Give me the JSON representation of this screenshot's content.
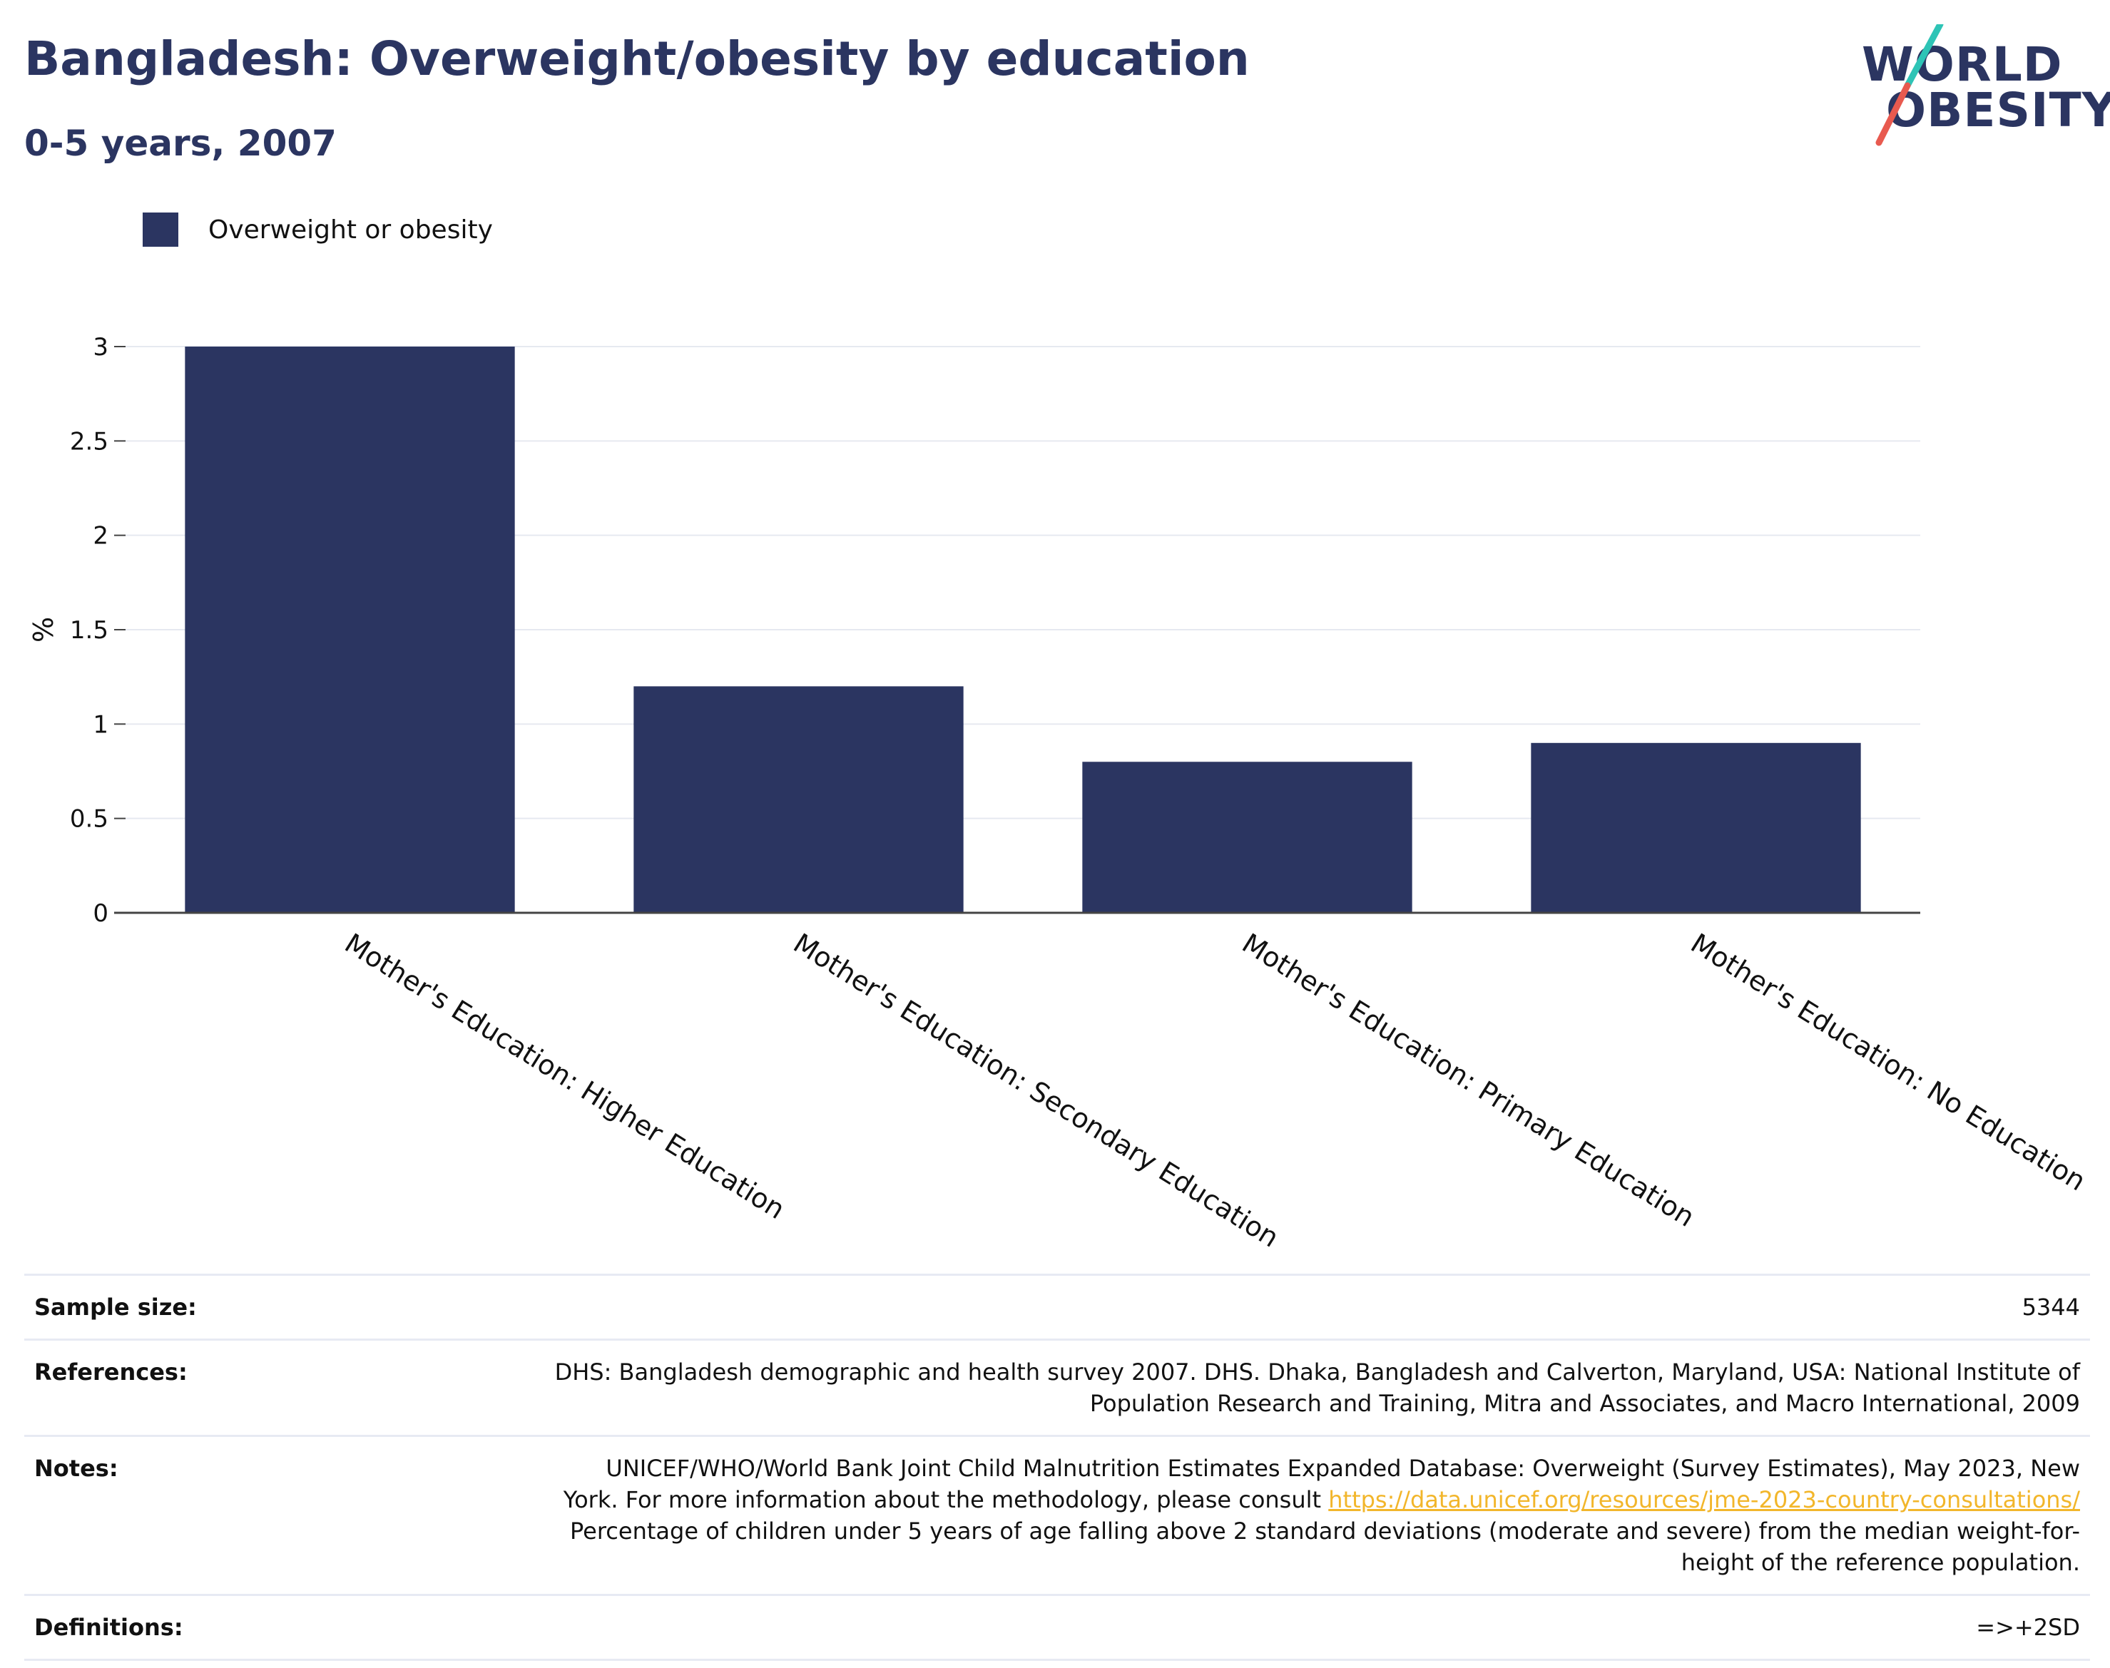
{
  "header": {
    "title": "Bangladesh: Overweight/obesity by education",
    "subtitle": "0-5 years, 2007"
  },
  "logo": {
    "line1": "WORLD",
    "line2": "OBESITY",
    "accent_colors": [
      "#2ec4b6",
      "#e85a4f"
    ]
  },
  "legend": {
    "label": "Overweight or obesity",
    "color": "#2b3561"
  },
  "chart_data": {
    "type": "bar",
    "categories": [
      "Mother's Education: Higher Education",
      "Mother's Education: Secondary Education",
      "Mother's Education: Primary Education",
      "Mother's Education: No Education"
    ],
    "series": [
      {
        "name": "Overweight or obesity",
        "values": [
          3.0,
          1.2,
          0.8,
          0.9
        ],
        "color": "#2b3561"
      }
    ],
    "ylabel": "%",
    "ylim": [
      0,
      3
    ],
    "yticks": [
      {
        "value": 0,
        "label": "0"
      },
      {
        "value": 0.5,
        "label": "0.5"
      },
      {
        "value": 1,
        "label": "1"
      },
      {
        "value": 1.5,
        "label": "1.5"
      },
      {
        "value": 2,
        "label": "2"
      },
      {
        "value": 2.5,
        "label": "2.5"
      },
      {
        "value": 3,
        "label": "3"
      }
    ],
    "grid": true,
    "legend_position": "top-left"
  },
  "info": {
    "sample_size_label": "Sample size:",
    "sample_size_value": "5344",
    "references_label": "References:",
    "references_line1": "DHS: Bangladesh demographic and health survey 2007. DHS. Dhaka, Bangladesh and Calverton, Maryland, USA: National Institute of",
    "references_line2": "Population Research and Training, Mitra and Associates, and Macro International, 2009",
    "notes_label": "Notes:",
    "notes_line1": "UNICEF/WHO/World Bank Joint Child Malnutrition Estimates Expanded Database: Overweight (Survey Estimates), May 2023, New",
    "notes_line2_prefix": "York. For more information about the methodology, please consult",
    "notes_link": "https://data.unicef.org/resources/jme-2023-country-consultations/",
    "notes_line3": "Percentage of children under 5 years of age falling above 2 standard deviations (moderate and severe) from the median weight-for-",
    "notes_line4": "height of the reference population.",
    "definitions_label": "Definitions:",
    "definitions_value": "=>+2SD"
  }
}
